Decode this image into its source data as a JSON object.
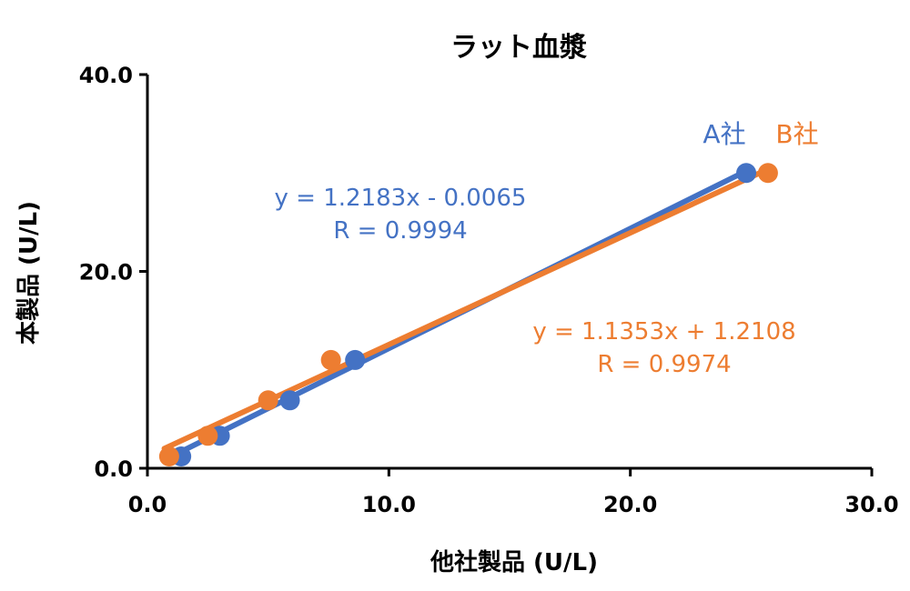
{
  "chart_data": {
    "type": "scatter",
    "title": "ラット血漿",
    "xlabel": "他社製品 (U/L)",
    "ylabel": "本製品 (U/L)",
    "xlim": [
      0,
      30
    ],
    "ylim": [
      0,
      40
    ],
    "x_ticks": [
      "0.0",
      "10.0",
      "20.0",
      "30.0"
    ],
    "y_ticks": [
      "0.0",
      "20.0",
      "40.0"
    ],
    "grid": false,
    "series": [
      {
        "name": "A社",
        "color": "#4472C4",
        "points": [
          {
            "x": 1.4,
            "y": 1.2
          },
          {
            "x": 3.0,
            "y": 3.3
          },
          {
            "x": 5.9,
            "y": 6.9
          },
          {
            "x": 8.6,
            "y": 11.0
          },
          {
            "x": 24.8,
            "y": 30.0
          }
        ],
        "trendline": {
          "slope": 1.2183,
          "intercept": -0.0065,
          "x_range": [
            0.9,
            24.8
          ]
        },
        "equation": "y = 1.2183x - 0.0065",
        "r": "R = 0.9994"
      },
      {
        "name": "B社",
        "color": "#ED7D31",
        "points": [
          {
            "x": 0.9,
            "y": 1.2
          },
          {
            "x": 2.5,
            "y": 3.3
          },
          {
            "x": 5.0,
            "y": 6.9
          },
          {
            "x": 7.6,
            "y": 11.0
          },
          {
            "x": 25.7,
            "y": 30.0
          }
        ],
        "trendline": {
          "slope": 1.1353,
          "intercept": 1.2108,
          "x_range": [
            0.7,
            25.5
          ]
        },
        "equation": "y = 1.1353x + 1.2108",
        "r": "R = 0.9974"
      }
    ]
  }
}
